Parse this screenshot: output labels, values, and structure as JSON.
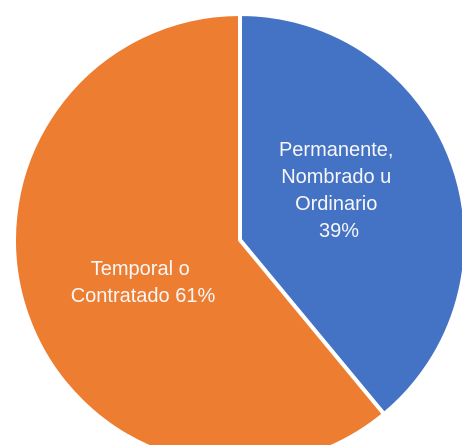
{
  "chart_data": {
    "type": "pie",
    "title": "",
    "slices": [
      {
        "label_lines": [
          "Permanente,",
          "Nombrado u",
          "Ordinario",
          "39%"
        ],
        "value": 39,
        "color": "#4472c4"
      },
      {
        "label_lines": [
          "Temporal o",
          "Contratado 61%"
        ],
        "value": 61,
        "color": "#ed7d31"
      }
    ],
    "start_angle_deg": 0,
    "direction": "clockwise",
    "separator_color": "#ffffff",
    "legend": "none"
  }
}
